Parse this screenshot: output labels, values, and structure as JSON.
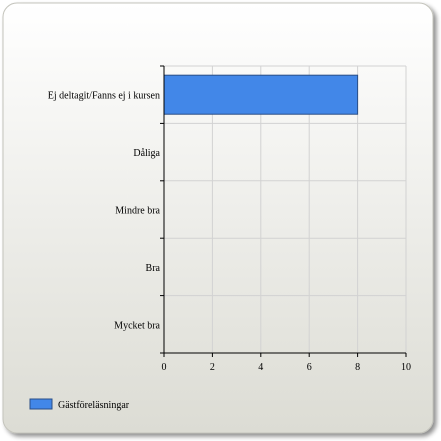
{
  "chart_data": {
    "type": "bar",
    "orientation": "horizontal",
    "categories": [
      "Ej deltagit/Fanns ej i kursen",
      "Dåliga",
      "Mindre bra",
      "Bra",
      "Mycket bra"
    ],
    "series": [
      {
        "name": "Gästföreläsningar",
        "values": [
          8,
          0,
          0,
          0,
          0
        ],
        "color": "#4287e8"
      }
    ],
    "xlim": [
      0,
      10
    ],
    "xticks": [
      0,
      2,
      4,
      6,
      8,
      10
    ],
    "grid": true,
    "legend": "bottom-left"
  },
  "colors": {
    "panel_top": "#ffffff",
    "panel_bottom": "#dcdcd4",
    "grid": "#d2d2d2",
    "bar_stroke": "#2a4e86"
  }
}
